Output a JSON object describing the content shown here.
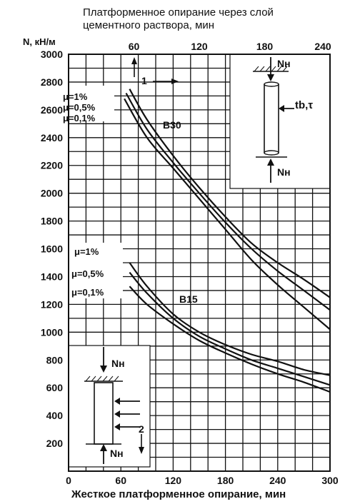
{
  "chart_data": {
    "type": "line",
    "title": "",
    "top_axis": {
      "label_line1": "Платформенное опирание через слой",
      "label_line2": "цементного раствора, мин",
      "ticks": [
        "60",
        "120",
        "180",
        "240"
      ],
      "tick_values": [
        60,
        120,
        180,
        240
      ],
      "range": [
        0,
        240
      ]
    },
    "xlabel": "Жесткое платформенное опирание, мин",
    "xlim": [
      0,
      300
    ],
    "xticks": [
      0,
      60,
      120,
      180,
      240,
      300
    ],
    "ylabel": "N, кН/м",
    "ylim": [
      0,
      3000
    ],
    "yticks": [
      200,
      400,
      600,
      800,
      1000,
      1200,
      1400,
      1600,
      1800,
      2000,
      2200,
      2400,
      2600,
      2800,
      3000
    ],
    "grid": true,
    "legend_placement": "inline-left",
    "series": [
      {
        "name": "B30, μ=1%",
        "group": "B30",
        "x": [
          70,
          90,
          120,
          150,
          180,
          210,
          240,
          270,
          300
        ],
        "y": [
          2750,
          2530,
          2270,
          2040,
          1830,
          1640,
          1500,
          1380,
          1250
        ]
      },
      {
        "name": "B30, μ=0,5%",
        "group": "B30",
        "x": [
          66,
          90,
          120,
          150,
          180,
          210,
          240,
          270,
          300
        ],
        "y": [
          2720,
          2460,
          2220,
          2000,
          1790,
          1600,
          1440,
          1300,
          1160
        ]
      },
      {
        "name": "B30, μ=0,1%",
        "group": "B30",
        "x": [
          64,
          90,
          120,
          150,
          180,
          210,
          240,
          270,
          300
        ],
        "y": [
          2680,
          2400,
          2180,
          1960,
          1740,
          1520,
          1340,
          1180,
          1020
        ]
      },
      {
        "name": "B15, μ=1%",
        "group": "B15",
        "x": [
          70,
          90,
          120,
          150,
          180,
          210,
          240,
          270,
          300
        ],
        "y": [
          1500,
          1330,
          1130,
          1000,
          910,
          840,
          790,
          730,
          690
        ]
      },
      {
        "name": "B15, μ=0,5%",
        "group": "B15",
        "x": [
          70,
          90,
          120,
          150,
          180,
          210,
          240,
          270,
          300
        ],
        "y": [
          1430,
          1280,
          1100,
          970,
          880,
          800,
          740,
          680,
          620
        ]
      },
      {
        "name": "B15, μ=0,1%",
        "group": "B15",
        "x": [
          70,
          90,
          120,
          150,
          180,
          210,
          240,
          270,
          300
        ],
        "y": [
          1330,
          1200,
          1060,
          940,
          850,
          770,
          700,
          640,
          570
        ]
      }
    ],
    "labels": {
      "b30": "B30",
      "b15": "B15",
      "b30_mu": [
        "μ=1%",
        "μ=0,5%",
        "μ=0,1%"
      ],
      "b15_mu": [
        "μ=1%",
        "μ=0,5%",
        "μ=0,1%"
      ],
      "marker1": "1",
      "marker2": "2",
      "load_top": "Nн",
      "load_bottom": "Nн",
      "load_inset2_top": "Nн",
      "load_inset2_bottom": "Nн",
      "temp": "tb,τ"
    }
  }
}
